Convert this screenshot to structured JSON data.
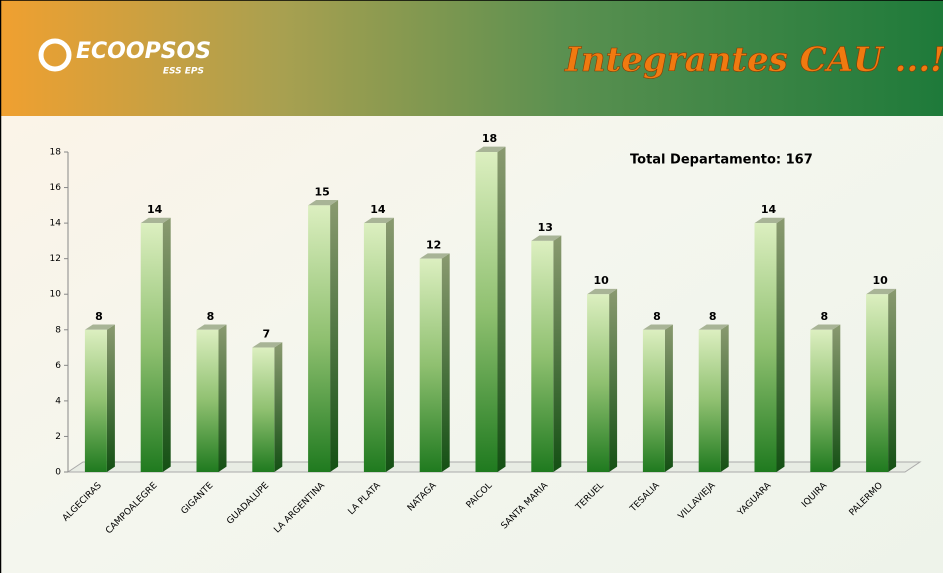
{
  "header": {
    "logo": "ECOOPSOS",
    "logo_sub": "ESS EPS",
    "title": "Integrantes CAU ...!!"
  },
  "chart_data": {
    "type": "bar",
    "annotation": "Total  Departamento: 167",
    "categories": [
      "ALGECIRAS",
      "CAMPOALEGRE",
      "GIGANTE",
      "GUADALUPE",
      "LA ARGENTINA",
      "LA PLATA",
      "NATAGA",
      "PAICOL",
      "SANTA MARIA",
      "TERUEL",
      "TESALIA",
      "VILLAVIEJA",
      "YAGUARA",
      "IQUIRA",
      "PALERMO"
    ],
    "values": [
      8,
      14,
      8,
      7,
      15,
      14,
      12,
      18,
      13,
      10,
      8,
      8,
      14,
      8,
      10
    ],
    "color": "#1f7a1f",
    "ylim": [
      0,
      18
    ],
    "yticks": [
      0,
      2,
      4,
      6,
      8,
      10,
      12,
      14,
      16,
      18
    ]
  }
}
